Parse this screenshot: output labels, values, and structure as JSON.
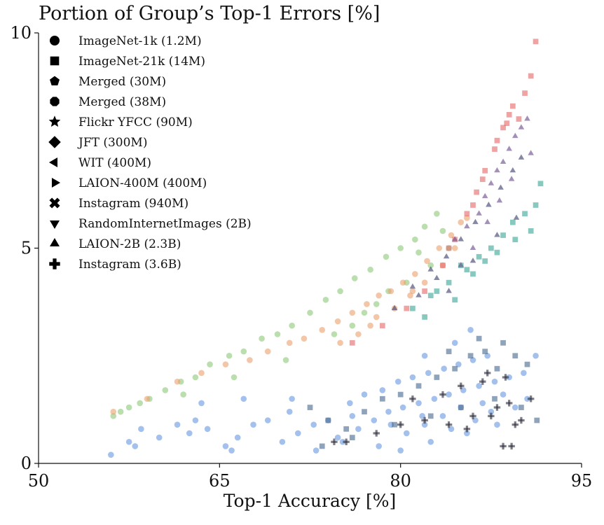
{
  "chart_data": {
    "type": "scatter",
    "title": "Portion of Group’s Top-1 Errors [%]",
    "xlabel": "Top-1 Accuracy [%]",
    "ylabel": "",
    "xlim": [
      50,
      95
    ],
    "ylim": [
      0,
      10
    ],
    "xticks": [
      "50",
      "65",
      "80",
      "95"
    ],
    "yticks": [
      "0",
      "5",
      "10"
    ],
    "grid": false,
    "legend_position": "top-left",
    "legend": [
      {
        "label": "ImageNet-1k (1.2M)",
        "marker": "circle"
      },
      {
        "label": "ImageNet-21k (14M)",
        "marker": "square"
      },
      {
        "label": "Merged (30M)",
        "marker": "pentagon"
      },
      {
        "label": "Merged (38M)",
        "marker": "octagon"
      },
      {
        "label": "Flickr YFCC (90M)",
        "marker": "star"
      },
      {
        "label": "JFT (300M)",
        "marker": "diamond"
      },
      {
        "label": "WIT (400M)",
        "marker": "triangle-left"
      },
      {
        "label": "LAION-400M (400M)",
        "marker": "triangle-right"
      },
      {
        "label": "Instagram (940M)",
        "marker": "x"
      },
      {
        "label": "RandomInternetImages (2B)",
        "marker": "triangle-down"
      },
      {
        "label": "LAION-2B (2.3B)",
        "marker": "triangle-up"
      },
      {
        "label": "Instagram (3.6B)",
        "marker": "plus"
      }
    ],
    "colors": {
      "green": "#8fca7a",
      "peach": "#eba373",
      "red": "#e56a6a",
      "teal": "#3fa898",
      "purple": "#6a4c8c",
      "navy": "#3b3f6e",
      "blue": "#6a9be0",
      "slate": "#4a6a8f",
      "dark": "#2e2e3e"
    },
    "series": [
      {
        "color_key": "green",
        "marker": "circle",
        "points": [
          [
            56.2,
            1.1
          ],
          [
            56.8,
            1.2
          ],
          [
            57.5,
            1.3
          ],
          [
            58.4,
            1.4
          ],
          [
            59.2,
            1.5
          ],
          [
            60.5,
            1.7
          ],
          [
            61.8,
            1.9
          ],
          [
            63.0,
            2.0
          ],
          [
            64.2,
            2.3
          ],
          [
            65.8,
            2.5
          ],
          [
            67.0,
            2.6
          ],
          [
            68.5,
            2.9
          ],
          [
            69.8,
            3.0
          ],
          [
            71.0,
            3.2
          ],
          [
            72.5,
            3.5
          ],
          [
            73.8,
            3.8
          ],
          [
            75.0,
            4.0
          ],
          [
            76.2,
            4.3
          ],
          [
            77.5,
            4.5
          ],
          [
            78.8,
            4.8
          ],
          [
            80.0,
            5.0
          ],
          [
            81.2,
            5.2
          ],
          [
            82.0,
            5.5
          ],
          [
            83.0,
            5.8
          ],
          [
            62.0,
            1.6
          ],
          [
            66.2,
            2.0
          ],
          [
            70.5,
            2.4
          ],
          [
            74.5,
            3.0
          ],
          [
            77.0,
            3.5
          ],
          [
            79.0,
            4.0
          ],
          [
            80.5,
            4.2
          ],
          [
            82.5,
            4.6
          ],
          [
            84.0,
            5.0
          ],
          [
            76.0,
            3.2
          ],
          [
            78.0,
            3.7
          ],
          [
            81.5,
            4.9
          ],
          [
            83.5,
            5.4
          ]
        ]
      },
      {
        "color_key": "peach",
        "marker": "circle",
        "points": [
          [
            56.2,
            1.2
          ],
          [
            59.0,
            1.5
          ],
          [
            61.5,
            1.9
          ],
          [
            63.5,
            2.1
          ],
          [
            65.5,
            2.3
          ],
          [
            67.5,
            2.4
          ],
          [
            69.0,
            2.6
          ],
          [
            70.8,
            2.8
          ],
          [
            72.0,
            2.9
          ],
          [
            73.5,
            3.1
          ],
          [
            74.8,
            3.3
          ],
          [
            76.0,
            3.5
          ],
          [
            77.2,
            3.7
          ],
          [
            78.2,
            3.9
          ],
          [
            79.2,
            4.0
          ],
          [
            80.2,
            4.2
          ],
          [
            81.2,
            4.4
          ],
          [
            82.2,
            4.7
          ],
          [
            83.2,
            5.0
          ],
          [
            84.2,
            5.3
          ],
          [
            85.0,
            5.6
          ],
          [
            75.0,
            2.8
          ],
          [
            76.5,
            3.0
          ],
          [
            78.0,
            3.4
          ],
          [
            79.5,
            3.6
          ],
          [
            80.8,
            3.9
          ],
          [
            82.0,
            4.2
          ],
          [
            83.5,
            4.6
          ],
          [
            84.5,
            5.0
          ],
          [
            77.5,
            3.2
          ],
          [
            81.0,
            4.0
          ],
          [
            85.5,
            5.7
          ]
        ]
      },
      {
        "color_key": "red",
        "marker": "square",
        "points": [
          [
            76.0,
            2.8
          ],
          [
            78.5,
            3.2
          ],
          [
            80.5,
            3.6
          ],
          [
            82.0,
            4.0
          ],
          [
            83.5,
            4.6
          ],
          [
            84.5,
            5.2
          ],
          [
            85.5,
            5.8
          ],
          [
            86.3,
            6.3
          ],
          [
            87.0,
            6.8
          ],
          [
            87.8,
            7.3
          ],
          [
            88.5,
            7.8
          ],
          [
            89.0,
            8.1
          ],
          [
            89.8,
            8.0
          ],
          [
            90.3,
            8.6
          ],
          [
            90.8,
            9.0
          ],
          [
            91.2,
            9.8
          ],
          [
            86.0,
            6.0
          ],
          [
            88.0,
            7.5
          ],
          [
            89.3,
            8.3
          ],
          [
            84.0,
            5.0
          ],
          [
            86.8,
            6.6
          ],
          [
            88.8,
            7.9
          ]
        ]
      },
      {
        "color_key": "teal",
        "marker": "square",
        "points": [
          [
            81.0,
            3.6
          ],
          [
            82.5,
            3.9
          ],
          [
            84.0,
            4.2
          ],
          [
            85.5,
            4.5
          ],
          [
            86.5,
            4.8
          ],
          [
            87.5,
            5.0
          ],
          [
            88.5,
            5.3
          ],
          [
            89.3,
            5.6
          ],
          [
            90.3,
            5.8
          ],
          [
            91.2,
            6.0
          ],
          [
            91.6,
            6.5
          ],
          [
            82.0,
            3.4
          ],
          [
            84.5,
            3.8
          ],
          [
            86.0,
            4.4
          ],
          [
            88.0,
            4.9
          ],
          [
            89.5,
            5.2
          ],
          [
            90.8,
            5.4
          ],
          [
            83.0,
            4.0
          ],
          [
            85.0,
            4.6
          ],
          [
            87.0,
            4.7
          ]
        ]
      },
      {
        "color_key": "purple",
        "marker": "triangle-up",
        "points": [
          [
            84.5,
            5.2
          ],
          [
            85.5,
            5.5
          ],
          [
            86.5,
            5.8
          ],
          [
            87.0,
            6.2
          ],
          [
            87.5,
            6.5
          ],
          [
            88.0,
            6.8
          ],
          [
            88.5,
            7.0
          ],
          [
            89.0,
            7.3
          ],
          [
            89.5,
            7.6
          ],
          [
            90.0,
            7.8
          ],
          [
            90.5,
            8.0
          ],
          [
            86.0,
            5.0
          ],
          [
            87.2,
            5.6
          ],
          [
            88.2,
            6.1
          ],
          [
            89.2,
            6.6
          ],
          [
            85.0,
            4.6
          ],
          [
            90.8,
            7.2
          ]
        ]
      },
      {
        "color_key": "navy",
        "marker": "triangle-up",
        "points": [
          [
            79.5,
            3.6
          ],
          [
            81.0,
            4.1
          ],
          [
            82.5,
            4.5
          ],
          [
            83.8,
            4.8
          ],
          [
            85.0,
            5.2
          ],
          [
            86.2,
            5.6
          ],
          [
            87.3,
            6.0
          ],
          [
            88.3,
            6.4
          ],
          [
            89.3,
            6.8
          ],
          [
            90.0,
            7.1
          ],
          [
            84.0,
            4.0
          ],
          [
            86.0,
            4.7
          ],
          [
            88.0,
            5.3
          ],
          [
            89.6,
            5.7
          ],
          [
            81.5,
            3.9
          ],
          [
            83.0,
            4.3
          ]
        ]
      },
      {
        "color_key": "blue",
        "marker": "circle",
        "points": [
          [
            56.0,
            0.2
          ],
          [
            57.5,
            0.5
          ],
          [
            58.5,
            0.8
          ],
          [
            60.0,
            0.6
          ],
          [
            61.5,
            0.9
          ],
          [
            63.0,
            1.0
          ],
          [
            64.0,
            0.8
          ],
          [
            65.5,
            0.4
          ],
          [
            66.5,
            0.6
          ],
          [
            67.8,
            0.9
          ],
          [
            69.0,
            1.0
          ],
          [
            70.2,
            0.5
          ],
          [
            71.5,
            0.7
          ],
          [
            72.8,
            0.9
          ],
          [
            74.0,
            1.0
          ],
          [
            75.2,
            0.5
          ],
          [
            76.5,
            0.8
          ],
          [
            77.8,
            1.0
          ],
          [
            79.0,
            1.2
          ],
          [
            80.2,
            1.3
          ],
          [
            81.5,
            1.4
          ],
          [
            82.8,
            1.5
          ],
          [
            84.0,
            1.6
          ],
          [
            85.2,
            1.7
          ],
          [
            86.5,
            1.8
          ],
          [
            87.8,
            1.9
          ],
          [
            89.0,
            2.0
          ],
          [
            90.2,
            2.1
          ],
          [
            91.2,
            2.5
          ],
          [
            58.0,
            0.4
          ],
          [
            62.5,
            0.7
          ],
          [
            66.0,
            0.3
          ],
          [
            70.8,
            1.2
          ],
          [
            74.8,
            0.6
          ],
          [
            78.2,
            0.4
          ],
          [
            80.5,
            0.7
          ],
          [
            82.0,
            0.9
          ],
          [
            83.5,
            1.1
          ],
          [
            85.0,
            1.3
          ],
          [
            86.8,
            1.4
          ],
          [
            88.5,
            1.6
          ],
          [
            90.5,
            1.5
          ],
          [
            75.8,
            1.4
          ],
          [
            77.0,
            1.6
          ],
          [
            78.5,
            1.7
          ],
          [
            79.8,
            1.9
          ],
          [
            81.0,
            2.0
          ],
          [
            82.3,
            2.1
          ],
          [
            83.6,
            2.2
          ],
          [
            84.8,
            2.3
          ],
          [
            86.0,
            2.4
          ],
          [
            87.2,
            2.5
          ],
          [
            80.0,
            0.3
          ],
          [
            82.5,
            0.5
          ],
          [
            85.5,
            0.7
          ],
          [
            88.0,
            0.9
          ],
          [
            63.5,
            1.4
          ],
          [
            67.0,
            1.5
          ],
          [
            71.0,
            1.5
          ],
          [
            73.0,
            0.3
          ],
          [
            76.0,
            1.1
          ],
          [
            79.2,
            0.9
          ],
          [
            81.8,
            1.1
          ],
          [
            84.2,
            0.8
          ],
          [
            86.2,
            1.0
          ],
          [
            87.5,
            1.2
          ],
          [
            89.5,
            1.3
          ],
          [
            84.5,
            2.8
          ],
          [
            82.0,
            2.5
          ],
          [
            85.8,
            3.1
          ]
        ]
      },
      {
        "color_key": "slate",
        "marker": "square",
        "points": [
          [
            72.5,
            1.3
          ],
          [
            74.0,
            1.0
          ],
          [
            75.5,
            0.8
          ],
          [
            77.0,
            1.2
          ],
          [
            78.5,
            1.5
          ],
          [
            80.0,
            1.6
          ],
          [
            81.5,
            1.8
          ],
          [
            83.0,
            2.0
          ],
          [
            84.5,
            2.2
          ],
          [
            85.8,
            2.5
          ],
          [
            87.0,
            2.6
          ],
          [
            88.5,
            2.8
          ],
          [
            89.5,
            2.5
          ],
          [
            90.5,
            2.3
          ],
          [
            91.3,
            1.0
          ],
          [
            73.5,
            0.4
          ],
          [
            76.0,
            0.6
          ],
          [
            79.5,
            0.9
          ],
          [
            82.5,
            1.1
          ],
          [
            85.0,
            1.3
          ],
          [
            87.8,
            1.5
          ],
          [
            90.0,
            1.3
          ],
          [
            84.0,
            2.6
          ],
          [
            86.5,
            2.9
          ],
          [
            88.0,
            2.2
          ]
        ]
      },
      {
        "color_key": "dark",
        "marker": "plus",
        "points": [
          [
            74.5,
            0.5
          ],
          [
            75.5,
            0.5
          ],
          [
            78.0,
            0.7
          ],
          [
            80.0,
            0.9
          ],
          [
            82.0,
            1.0
          ],
          [
            84.0,
            0.9
          ],
          [
            85.5,
            0.8
          ],
          [
            86.0,
            1.1
          ],
          [
            87.5,
            1.1
          ],
          [
            88.0,
            1.3
          ],
          [
            89.0,
            1.4
          ],
          [
            89.5,
            0.9
          ],
          [
            90.0,
            1.0
          ],
          [
            88.5,
            0.4
          ],
          [
            89.2,
            0.4
          ],
          [
            81.0,
            1.5
          ],
          [
            83.5,
            1.6
          ],
          [
            86.8,
            1.9
          ],
          [
            88.7,
            2.0
          ],
          [
            90.8,
            1.5
          ],
          [
            85.0,
            1.8
          ],
          [
            87.2,
            2.1
          ]
        ]
      }
    ]
  }
}
